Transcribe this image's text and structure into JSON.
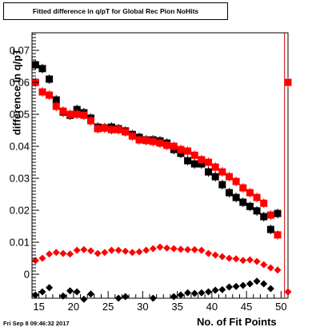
{
  "title": "Fitted difference in q/pT for Global Rec Pion NoHits",
  "xlabel": "No. of Fit Points",
  "ylabel": "difference in q/pT",
  "datestamp": "Fri Sep  8 09:46:32 2017",
  "colors": {
    "series_black": "#000000",
    "series_red": "#ff0000",
    "divider_line": "#cc0000"
  },
  "chart_data": {
    "type": "scatter",
    "xlim": [
      14,
      51
    ],
    "ylim": [
      -0.0075,
      0.0755
    ],
    "xticks": [
      15,
      20,
      25,
      30,
      35,
      40,
      45,
      50
    ],
    "yticks": [
      {
        "value": 0.0,
        "label": "0"
      },
      {
        "value": 0.01,
        "label": "0.01"
      },
      {
        "value": 0.02,
        "label": "0.02"
      },
      {
        "value": 0.03,
        "label": "0.03"
      },
      {
        "value": 0.04,
        "label": "0.04"
      },
      {
        "value": 0.05,
        "label": "0.05"
      },
      {
        "value": 0.06,
        "label": "0.06"
      },
      {
        "value": 0.07,
        "label": "0.07"
      }
    ],
    "vertical_line_x": 50.5,
    "grid": false,
    "series": [
      {
        "marker": "square",
        "color": "#000000",
        "error_bars": true,
        "points": [
          [
            14.5,
            0.0655
          ],
          [
            15.5,
            0.0643
          ],
          [
            16.5,
            0.061
          ],
          [
            17.5,
            0.0545
          ],
          [
            18.5,
            0.0507
          ],
          [
            19.5,
            0.0497
          ],
          [
            20.5,
            0.0515
          ],
          [
            21.5,
            0.0505
          ],
          [
            22.5,
            0.0488
          ],
          [
            23.5,
            0.046
          ],
          [
            24.5,
            0.0458
          ],
          [
            25.5,
            0.046
          ],
          [
            26.5,
            0.0455
          ],
          [
            27.5,
            0.0448
          ],
          [
            28.5,
            0.0437
          ],
          [
            29.5,
            0.0428
          ],
          [
            30.5,
            0.042
          ],
          [
            31.5,
            0.042
          ],
          [
            32.5,
            0.0417
          ],
          [
            33.5,
            0.041
          ],
          [
            34.5,
            0.039
          ],
          [
            35.5,
            0.0378
          ],
          [
            36.5,
            0.0355
          ],
          [
            37.5,
            0.0345
          ],
          [
            38.5,
            0.0345
          ],
          [
            39.5,
            0.032
          ],
          [
            40.5,
            0.0305
          ],
          [
            41.5,
            0.028
          ],
          [
            42.5,
            0.0255
          ],
          [
            43.5,
            0.024
          ],
          [
            44.5,
            0.0225
          ],
          [
            45.5,
            0.0212
          ],
          [
            46.5,
            0.0198
          ],
          [
            47.5,
            0.018
          ],
          [
            48.5,
            0.014
          ],
          [
            49.5,
            0.019
          ]
        ]
      },
      {
        "marker": "square",
        "color": "#ff0000",
        "error_bars": true,
        "points": [
          [
            14.5,
            0.06
          ],
          [
            15.5,
            0.057
          ],
          [
            16.5,
            0.056
          ],
          [
            17.5,
            0.0525
          ],
          [
            18.5,
            0.051
          ],
          [
            19.5,
            0.05
          ],
          [
            20.5,
            0.05
          ],
          [
            21.5,
            0.0497
          ],
          [
            22.5,
            0.048
          ],
          [
            23.5,
            0.0455
          ],
          [
            24.5,
            0.0457
          ],
          [
            25.5,
            0.0452
          ],
          [
            26.5,
            0.0452
          ],
          [
            27.5,
            0.0445
          ],
          [
            28.5,
            0.0432
          ],
          [
            29.5,
            0.042
          ],
          [
            30.5,
            0.0418
          ],
          [
            31.5,
            0.0415
          ],
          [
            32.5,
            0.041
          ],
          [
            33.5,
            0.0403
          ],
          [
            34.5,
            0.04
          ],
          [
            35.5,
            0.039
          ],
          [
            36.5,
            0.0385
          ],
          [
            37.5,
            0.0372
          ],
          [
            38.5,
            0.0358
          ],
          [
            39.5,
            0.035
          ],
          [
            40.5,
            0.0335
          ],
          [
            41.5,
            0.032
          ],
          [
            42.5,
            0.0305
          ],
          [
            43.5,
            0.029
          ],
          [
            44.5,
            0.027
          ],
          [
            45.5,
            0.0255
          ],
          [
            46.5,
            0.024
          ],
          [
            47.5,
            0.0222
          ],
          [
            48.5,
            0.0185
          ],
          [
            49.5,
            0.0123
          ],
          [
            51.0,
            0.06
          ]
        ]
      },
      {
        "marker": "diamond",
        "color": "#ff0000",
        "points": [
          [
            14.5,
            0.0043
          ],
          [
            15.5,
            0.005
          ],
          [
            16.5,
            0.0063
          ],
          [
            17.5,
            0.0068
          ],
          [
            18.5,
            0.0065
          ],
          [
            19.5,
            0.0063
          ],
          [
            20.5,
            0.0075
          ],
          [
            21.5,
            0.0077
          ],
          [
            22.5,
            0.0073
          ],
          [
            23.5,
            0.0065
          ],
          [
            24.5,
            0.0068
          ],
          [
            25.5,
            0.0075
          ],
          [
            26.5,
            0.0075
          ],
          [
            27.5,
            0.0072
          ],
          [
            28.5,
            0.0068
          ],
          [
            29.5,
            0.007
          ],
          [
            30.5,
            0.0075
          ],
          [
            31.5,
            0.008
          ],
          [
            32.5,
            0.0085
          ],
          [
            33.5,
            0.0082
          ],
          [
            34.5,
            0.008
          ],
          [
            35.5,
            0.0078
          ],
          [
            36.5,
            0.0077
          ],
          [
            37.5,
            0.0077
          ],
          [
            38.5,
            0.0075
          ],
          [
            39.5,
            0.0065
          ],
          [
            40.5,
            0.006
          ],
          [
            41.5,
            0.0055
          ],
          [
            42.5,
            0.005
          ],
          [
            43.5,
            0.0048
          ],
          [
            44.5,
            0.0043
          ],
          [
            45.5,
            0.0045
          ],
          [
            46.5,
            0.004
          ],
          [
            47.5,
            0.003
          ],
          [
            48.5,
            0.002
          ],
          [
            49.5,
            0.0013
          ],
          [
            51.0,
            -0.0055
          ]
        ]
      },
      {
        "marker": "diamond",
        "color": "#000000",
        "points": [
          [
            14.5,
            -0.0065
          ],
          [
            15.5,
            -0.0055
          ],
          [
            16.5,
            -0.0042
          ],
          [
            18.5,
            -0.0068
          ],
          [
            19.5,
            -0.0052
          ],
          [
            20.5,
            -0.0055
          ],
          [
            21.5,
            -0.0078
          ],
          [
            22.5,
            -0.0062
          ],
          [
            26.5,
            -0.0075
          ],
          [
            27.5,
            -0.007
          ],
          [
            31.5,
            -0.0075
          ],
          [
            34.5,
            -0.007
          ],
          [
            35.5,
            -0.0065
          ],
          [
            36.5,
            -0.0058
          ],
          [
            37.5,
            -0.006
          ],
          [
            38.5,
            -0.0058
          ],
          [
            39.5,
            -0.0055
          ],
          [
            40.5,
            -0.005
          ],
          [
            41.5,
            -0.0048
          ],
          [
            42.5,
            -0.004
          ],
          [
            43.5,
            -0.0038
          ],
          [
            44.5,
            -0.0035
          ],
          [
            45.5,
            -0.003
          ],
          [
            46.5,
            -0.0022
          ],
          [
            47.5,
            -0.003
          ],
          [
            48.5,
            -0.0045
          ]
        ]
      }
    ]
  }
}
